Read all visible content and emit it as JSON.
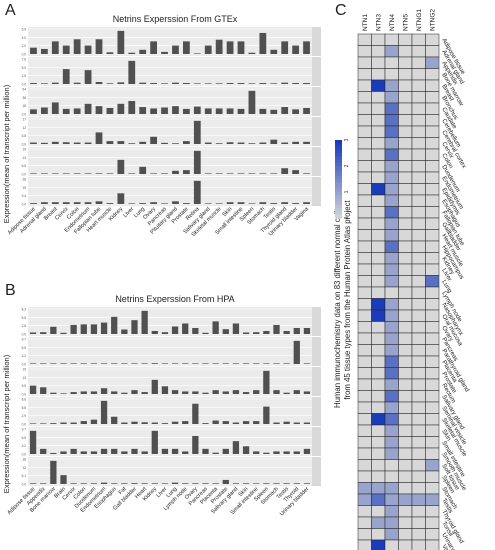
{
  "panels": {
    "a": {
      "letter": "A",
      "title": "Netrins  Experssion  From  GTEx",
      "ylabel": "Expression(mean of transcript per million)"
    },
    "b": {
      "letter": "B",
      "title": "Netrins  Experssion  From  HPA",
      "ylabel": "Expression(mean of transcript per million)"
    },
    "c": {
      "letter": "C",
      "ylabel_line1": "Human immunochemistry data on 83 different normal celltypes",
      "ylabel_line2": "from 45 tissue types from the Human Protein Atlas project"
    }
  },
  "chart_data": [
    {
      "type": "bar",
      "title": "Netrins  Experssion  From  GTEx",
      "ylabel": "Expression(mean of transcript per million)",
      "categories": [
        "Adipose tissue",
        "Adrenal gland",
        "Breast",
        "Cervix",
        "Colon",
        "Endometrium",
        "Fallopian tube",
        "Heart muscle",
        "Kidney",
        "Liver",
        "Lung",
        "Ovary",
        "Pancreas",
        "Pituitary gland",
        "Prostate",
        "Retina",
        "Salivary gland",
        "Skeletal muscle",
        "Skin",
        "Small intestine",
        "Spleen",
        "Stomach",
        "Testis",
        "Thyroid gland",
        "Urinary bladder",
        "Vagina"
      ],
      "series": [
        {
          "name": "NTN1",
          "values": [
            1.5,
            1.2,
            3,
            2,
            3.5,
            2,
            3.5,
            0.4,
            5.5,
            0.3,
            1,
            3,
            0.5,
            2,
            3,
            0,
            2,
            3.4,
            3,
            3,
            0.3,
            5,
            1,
            3,
            2,
            3
          ]
        },
        {
          "name": "NTN3",
          "values": [
            0.3,
            0.2,
            0.4,
            4.5,
            0.4,
            4.2,
            0.6,
            0.2,
            0.5,
            7,
            0.4,
            0.3,
            0.2,
            0.4,
            0.3,
            0,
            0.1,
            0.2,
            0.3,
            0.3,
            0.1,
            0.3,
            0.2,
            0.4,
            0.3,
            0.3
          ]
        },
        {
          "name": "NTN4",
          "values": [
            10,
            14,
            25,
            11,
            12,
            22,
            17,
            13,
            22,
            28,
            15,
            12,
            14,
            17,
            11,
            16,
            12,
            12,
            12,
            11,
            50,
            11,
            9,
            15,
            10,
            13
          ]
        },
        {
          "name": "NTN5",
          "values": [
            1,
            0.8,
            1.5,
            1.2,
            1,
            1,
            8,
            2,
            2,
            0.5,
            1.5,
            5,
            0.8,
            0.5,
            2,
            16,
            1,
            0.5,
            1.2,
            1,
            0.5,
            1,
            3,
            1,
            1.5,
            1.5
          ]
        },
        {
          "name": "NTNG1",
          "values": [
            0.3,
            0.3,
            0.4,
            0.3,
            0.3,
            0.4,
            0.5,
            0.3,
            11,
            0.2,
            5.6,
            0.3,
            0.5,
            2.5,
            3,
            18,
            0.2,
            0.2,
            0.3,
            0.2,
            0.2,
            0.3,
            0.4,
            4.5,
            3,
            0.5
          ]
        },
        {
          "name": "NTNG2",
          "values": [
            1,
            2,
            2,
            2,
            2,
            2,
            3,
            1,
            12,
            0.2,
            1,
            2,
            0.5,
            3,
            1,
            26,
            0.5,
            0.5,
            2,
            2,
            0.5,
            2,
            1,
            2,
            1,
            2
          ]
        }
      ]
    },
    {
      "type": "bar",
      "title": "Netrins  Experssion  From  HPA",
      "ylabel": "Expression(mean of transcript per million)",
      "categories": [
        "Adipose tissue",
        "Appendix",
        "Bone marrow",
        "Brain",
        "Cervix",
        "Colon",
        "Duodenum",
        "Endometrium",
        "Esophagus",
        "Fat",
        "Gall bladder",
        "Heart",
        "Kidney",
        "Liver",
        "Lung",
        "Lymph node",
        "Ovary",
        "Pancreas",
        "Placenta",
        "Prostate",
        "Salivary gland",
        "Skin",
        "Small intestine",
        "Spleen",
        "Stomach",
        "Testis",
        "Thyroid",
        "Urinary bladder"
      ],
      "series": [
        {
          "name": "NTN1",
          "values": [
            0.5,
            0.6,
            2.4,
            0.4,
            3,
            3.2,
            3.2,
            3.8,
            5.7,
            1.5,
            4.6,
            7.7,
            1,
            0.6,
            2.5,
            3.5,
            2,
            0.4,
            4.2,
            1.6,
            3.5,
            0.5,
            0.6,
            1,
            3,
            1,
            2,
            2
          ]
        },
        {
          "name": "NTN3",
          "values": [
            0.1,
            0.2,
            0.1,
            0.2,
            0.1,
            0.1,
            0.2,
            0.1,
            0.1,
            0.1,
            0.2,
            0.1,
            0.3,
            0.1,
            0.1,
            0.1,
            0.2,
            0.1,
            0.2,
            0.1,
            0.1,
            0.1,
            0.1,
            0.1,
            0.1,
            0.1,
            9,
            0.2
          ]
        },
        {
          "name": "NTN4",
          "values": [
            6.5,
            5.2,
            1,
            0.5,
            1.5,
            2,
            2,
            4.5,
            2,
            1,
            3,
            1.5,
            11,
            6,
            3,
            2,
            2,
            1,
            3,
            2,
            3,
            1.5,
            3,
            18,
            3,
            1,
            3,
            2
          ]
        },
        {
          "name": "NTN5",
          "values": [
            0.2,
            0.2,
            0.3,
            0.5,
            0.5,
            1,
            1.5,
            8,
            2.5,
            0.5,
            0.8,
            0.6,
            0.5,
            0.3,
            0.8,
            1,
            7,
            0.3,
            1.2,
            1,
            0.5,
            1,
            1,
            6,
            0.5,
            0.8,
            0.5,
            0.5
          ]
        },
        {
          "name": "NTNG1",
          "values": [
            9,
            2,
            0.4,
            1,
            2,
            1,
            1,
            2,
            2,
            1,
            2,
            1,
            9,
            2,
            2,
            1,
            7,
            2,
            0.5,
            2,
            5,
            3,
            1,
            0.5,
            1,
            1,
            1,
            2
          ]
        },
        {
          "name": "NTNG2",
          "values": [
            0.5,
            0.5,
            17,
            6.5,
            0.5,
            0.5,
            0.5,
            1,
            0.5,
            0.5,
            0.6,
            0.5,
            0.5,
            0.3,
            1,
            0.5,
            0.5,
            0.5,
            0.5,
            3,
            0.5,
            0.5,
            0.3,
            0.5,
            0.5,
            0.5,
            0.5,
            0.5
          ]
        }
      ]
    },
    {
      "type": "heatmap",
      "columns": [
        "NTN1",
        "NTN3",
        "NTN4",
        "NTN5",
        "NTNG1",
        "NTNG2"
      ],
      "color_scale": {
        "min": 0,
        "max": 3,
        "ticks": [
          "0",
          "1",
          "2",
          "3"
        ],
        "low": "#d8d8d8",
        "high": "#1a3cb8"
      },
      "rows": [
        {
          "label": "Adipose tissue",
          "values": [
            0,
            0,
            0,
            0,
            0,
            0
          ]
        },
        {
          "label": "Adrenal gland",
          "values": [
            0,
            0,
            1,
            0,
            0,
            0
          ]
        },
        {
          "label": "Appendix",
          "values": [
            0,
            0,
            0,
            0,
            0,
            1
          ]
        },
        {
          "label": "Bone marrow",
          "values": [
            0,
            0,
            0,
            0,
            0,
            0
          ]
        },
        {
          "label": "Breast",
          "values": [
            0,
            3,
            1,
            0,
            0,
            0
          ]
        },
        {
          "label": "Bronchus",
          "values": [
            0,
            0,
            1,
            0,
            0,
            0
          ]
        },
        {
          "label": "Caudate",
          "values": [
            0,
            0,
            2,
            0,
            0,
            0
          ]
        },
        {
          "label": "Cerebellum",
          "values": [
            0,
            0,
            2,
            0,
            0,
            0
          ]
        },
        {
          "label": "Cerebral cortex",
          "values": [
            0,
            0,
            2,
            0,
            0,
            0
          ]
        },
        {
          "label": "Cervix",
          "values": [
            0,
            0,
            1,
            0,
            0,
            0
          ]
        },
        {
          "label": "Colon",
          "values": [
            0,
            0,
            2,
            0,
            0,
            0
          ]
        },
        {
          "label": "Duodenum",
          "values": [
            0,
            0,
            1,
            0,
            0,
            0
          ]
        },
        {
          "label": "Endometrium",
          "values": [
            0,
            0,
            1,
            0,
            0,
            0
          ]
        },
        {
          "label": "Epididymis",
          "values": [
            0,
            3,
            1,
            0,
            0,
            0
          ]
        },
        {
          "label": "Esophagus",
          "values": [
            0,
            0,
            1,
            0,
            0,
            0
          ]
        },
        {
          "label": "Fallopian tube",
          "values": [
            0,
            0,
            2,
            0,
            0,
            0
          ]
        },
        {
          "label": "Gallbladder",
          "values": [
            0,
            0,
            1,
            0,
            0,
            0
          ]
        },
        {
          "label": "Heart muscle",
          "values": [
            0,
            0,
            1,
            0,
            0,
            0
          ]
        },
        {
          "label": "Hippocampus",
          "values": [
            0,
            0,
            2,
            0,
            0,
            0
          ]
        },
        {
          "label": "Kidney",
          "values": [
            0,
            0,
            1,
            0,
            0,
            0
          ]
        },
        {
          "label": "Liver",
          "values": [
            0,
            0,
            1,
            0,
            0,
            0
          ]
        },
        {
          "label": "Lung",
          "values": [
            0,
            0,
            1,
            0,
            0,
            2
          ]
        },
        {
          "label": "Lymph node",
          "values": [
            0,
            0,
            0,
            0,
            0,
            0
          ]
        },
        {
          "label": "Nasopharynx",
          "values": [
            0,
            3,
            1,
            0,
            0,
            0
          ]
        },
        {
          "label": "Oral mucosa",
          "values": [
            0,
            3,
            1,
            0,
            0,
            0
          ]
        },
        {
          "label": "Ovary",
          "values": [
            0,
            0,
            1,
            0,
            0,
            0
          ]
        },
        {
          "label": "Pancreas",
          "values": [
            0,
            0,
            1,
            0,
            0,
            0
          ]
        },
        {
          "label": "Parathyroid gland",
          "values": [
            0,
            0,
            1,
            0,
            0,
            0
          ]
        },
        {
          "label": "Placenta",
          "values": [
            0,
            0,
            2,
            0,
            0,
            0
          ]
        },
        {
          "label": "Prostate",
          "values": [
            0,
            0,
            2,
            0,
            0,
            0
          ]
        },
        {
          "label": "Rectum",
          "values": [
            0,
            0,
            1,
            0,
            0,
            0
          ]
        },
        {
          "label": "Salivary gland",
          "values": [
            0,
            0,
            2,
            0,
            0,
            0
          ]
        },
        {
          "label": "Seminal vesicle",
          "values": [
            0,
            0,
            1,
            0,
            0,
            0
          ]
        },
        {
          "label": "Skeletal muscle",
          "values": [
            0,
            3,
            2,
            0,
            0,
            0
          ]
        },
        {
          "label": "Skin",
          "values": [
            0,
            0,
            1,
            0,
            0,
            0
          ]
        },
        {
          "label": "Small intestine",
          "values": [
            0,
            0,
            1,
            0,
            0,
            0
          ]
        },
        {
          "label": "Smooth muscle",
          "values": [
            0,
            0,
            1,
            0,
            0,
            0
          ]
        },
        {
          "label": "Soft tissue",
          "values": [
            0,
            0,
            0,
            0,
            0,
            1
          ]
        },
        {
          "label": "Spleen",
          "values": [
            0,
            0,
            0,
            0,
            0,
            0
          ]
        },
        {
          "label": "Stomach",
          "values": [
            1,
            1,
            1,
            0,
            0,
            0
          ]
        },
        {
          "label": "Testis",
          "values": [
            1,
            2,
            1,
            1,
            1,
            1
          ]
        },
        {
          "label": "Thyroid gland",
          "values": [
            0,
            0,
            1,
            0,
            0,
            0
          ]
        },
        {
          "label": "Tonsil",
          "values": [
            0,
            1,
            1,
            0,
            0,
            0
          ]
        },
        {
          "label": "Urinary bladder",
          "values": [
            0,
            0,
            1,
            0,
            0,
            0
          ]
        },
        {
          "label": "Vagina",
          "values": [
            0,
            3,
            0,
            0,
            0,
            0
          ]
        }
      ]
    }
  ]
}
